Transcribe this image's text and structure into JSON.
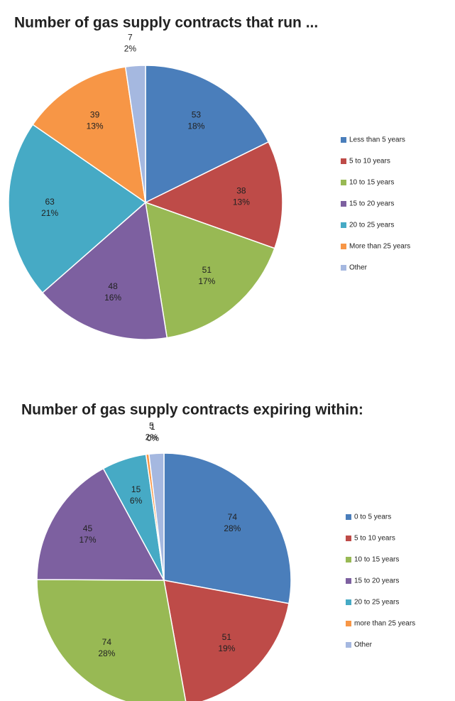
{
  "chart_data": [
    {
      "type": "pie",
      "title": "Number of gas supply contracts that run ...",
      "categories": [
        "Less than 5 years",
        "5 to 10 years",
        "10 to 15 years",
        "15 to 20 years",
        "20 to 25 years",
        "More than 25 years",
        "Other"
      ],
      "values": [
        53,
        38,
        51,
        48,
        63,
        39,
        7
      ],
      "percent_labels": [
        "18%",
        "13%",
        "17%",
        "16%",
        "21%",
        "13%",
        "2%"
      ],
      "colors": [
        "#4a7ebb",
        "#be4b48",
        "#98b954",
        "#7d60a0",
        "#46aac5",
        "#f79646",
        "#a5b8e0"
      ]
    },
    {
      "type": "pie",
      "title": "Number of gas supply contracts expiring within:",
      "categories": [
        "0 to 5 years",
        "5 to 10 years",
        "10 to 15 years",
        "15 to 20 years",
        "20 to 25 years",
        "more than 25 years",
        "Other"
      ],
      "values": [
        74,
        51,
        74,
        45,
        15,
        1,
        5
      ],
      "percent_labels": [
        "28%",
        "19%",
        "28%",
        "17%",
        "6%",
        "0%",
        "2%"
      ],
      "colors": [
        "#4a7ebb",
        "#be4b48",
        "#98b954",
        "#7d60a0",
        "#46aac5",
        "#f79646",
        "#a5b8e0"
      ]
    }
  ]
}
